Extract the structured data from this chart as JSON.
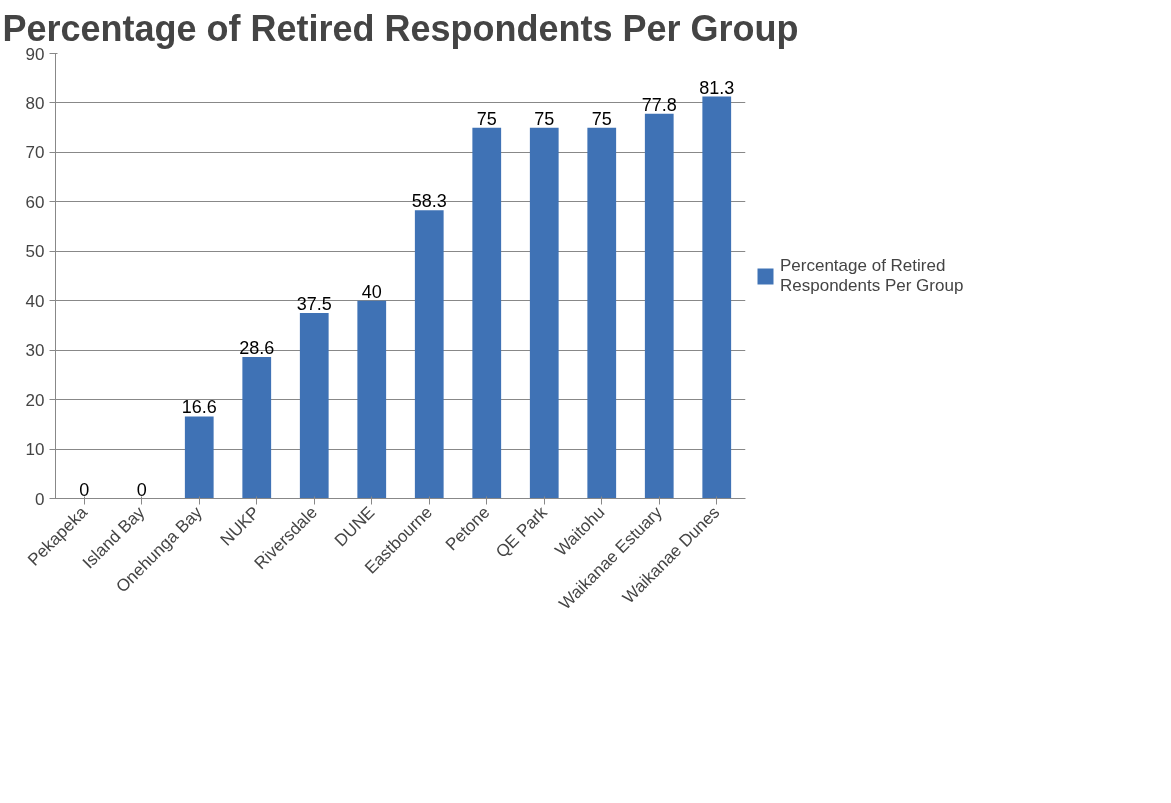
{
  "chart_data": {
    "type": "bar",
    "title": "Percentage of Retired Respondents Per Group",
    "categories": [
      "Pekapeka",
      "Island Bay",
      "Onehunga Bay",
      "NUKP",
      "Riversdale",
      "DUNE",
      "Eastbourne",
      "Petone",
      "QE Park",
      "Waitohu",
      "Waikanae Estuary",
      "Waikanae Dunes"
    ],
    "series": [
      {
        "name": "Percentage of Retired Respondents Per Group",
        "color": "#3f72b5",
        "values": [
          0,
          0,
          16.6,
          28.6,
          37.5,
          40,
          58.3,
          75,
          75,
          75,
          77.8,
          81.3
        ]
      }
    ],
    "ylim": [
      0,
      90
    ],
    "yticks": [
      0,
      10,
      20,
      30,
      40,
      50,
      60,
      70,
      80,
      90
    ],
    "grid": "y",
    "legend": "right",
    "data_labels": true
  }
}
